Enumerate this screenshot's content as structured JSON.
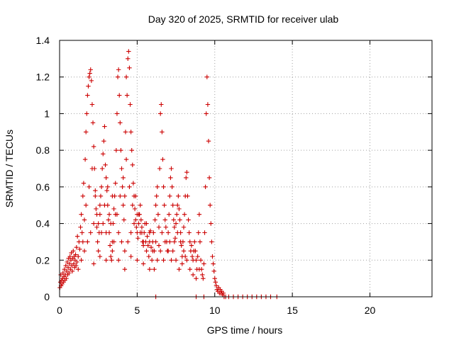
{
  "chart_data": {
    "type": "scatter",
    "title": "Day 320 of 2025, SRMTID for receiver ulab",
    "xlabel": "GPS time / hours",
    "ylabel": "SRMTID / TECUs",
    "xlim": [
      0,
      24
    ],
    "ylim": [
      0,
      1.4
    ],
    "x_ticks": [
      0,
      5,
      10,
      15,
      20
    ],
    "x_tick_labels": [
      "0",
      "5",
      "10",
      "15",
      "20"
    ],
    "y_ticks": [
      0,
      0.2,
      0.4,
      0.6,
      0.8,
      1,
      1.2,
      1.4
    ],
    "y_tick_labels": [
      "0",
      "0.2",
      "0.4",
      "0.6",
      "0.8",
      "1",
      "1.2",
      "1.4"
    ],
    "grid": true,
    "marker": "+",
    "series_color": "#cc0000",
    "series": [
      {
        "name": "SRMTID",
        "points": [
          [
            0.02,
            0.05
          ],
          [
            0.05,
            0.08
          ],
          [
            0.08,
            0.12
          ],
          [
            0.1,
            0.06
          ],
          [
            0.13,
            0.09
          ],
          [
            0.16,
            0.07
          ],
          [
            0.19,
            0.1
          ],
          [
            0.22,
            0.13
          ],
          [
            0.25,
            0.08
          ],
          [
            0.28,
            0.11
          ],
          [
            0.31,
            0.15
          ],
          [
            0.34,
            0.09
          ],
          [
            0.37,
            0.12
          ],
          [
            0.4,
            0.17
          ],
          [
            0.43,
            0.1
          ],
          [
            0.46,
            0.14
          ],
          [
            0.49,
            0.19
          ],
          [
            0.52,
            0.12
          ],
          [
            0.55,
            0.16
          ],
          [
            0.58,
            0.21
          ],
          [
            0.61,
            0.13
          ],
          [
            0.64,
            0.18
          ],
          [
            0.67,
            0.22
          ],
          [
            0.7,
            0.15
          ],
          [
            0.73,
            0.2
          ],
          [
            0.76,
            0.24
          ],
          [
            0.79,
            0.17
          ],
          [
            0.82,
            0.14
          ],
          [
            0.85,
            0.21
          ],
          [
            0.88,
            0.25
          ],
          [
            0.91,
            0.18
          ],
          [
            0.94,
            0.22
          ],
          [
            0.97,
            0.16
          ],
          [
            1.0,
            0.2
          ],
          [
            1.03,
            0.23
          ],
          [
            1.06,
            0.17
          ],
          [
            1.09,
            0.27
          ],
          [
            1.12,
            0.19
          ],
          [
            1.15,
            0.33
          ],
          [
            1.2,
            0.22
          ],
          [
            1.25,
            0.3
          ],
          [
            1.3,
            0.26
          ],
          [
            1.35,
            0.38
          ],
          [
            1.4,
            0.45
          ],
          [
            1.45,
            0.35
          ],
          [
            1.5,
            0.55
          ],
          [
            1.55,
            0.62
          ],
          [
            1.6,
            0.42
          ],
          [
            1.65,
            0.75
          ],
          [
            1.7,
            0.9
          ],
          [
            1.75,
            1.0
          ],
          [
            1.8,
            1.1
          ],
          [
            1.85,
            1.15
          ],
          [
            1.9,
            1.2
          ],
          [
            1.95,
            1.22
          ],
          [
            2.0,
            1.24
          ],
          [
            2.05,
            1.18
          ],
          [
            2.1,
            1.05
          ],
          [
            2.15,
            0.95
          ],
          [
            2.2,
            0.82
          ],
          [
            2.25,
            0.7
          ],
          [
            2.3,
            0.58
          ],
          [
            2.35,
            0.48
          ],
          [
            2.4,
            0.38
          ],
          [
            2.45,
            0.3
          ],
          [
            2.5,
            0.25
          ],
          [
            2.55,
            0.35
          ],
          [
            2.6,
            0.45
          ],
          [
            2.65,
            0.55
          ],
          [
            2.7,
            0.6
          ],
          [
            2.75,
            0.7
          ],
          [
            2.8,
            0.78
          ],
          [
            2.85,
            0.85
          ],
          [
            2.9,
            0.93
          ],
          [
            2.95,
            0.72
          ],
          [
            3.0,
            0.65
          ],
          [
            3.05,
            0.58
          ],
          [
            3.1,
            0.5
          ],
          [
            3.15,
            0.42
          ],
          [
            3.2,
            0.35
          ],
          [
            3.25,
            0.28
          ],
          [
            3.3,
            0.22
          ],
          [
            3.35,
            0.2
          ],
          [
            3.4,
            0.3
          ],
          [
            3.45,
            0.4
          ],
          [
            3.5,
            0.48
          ],
          [
            3.55,
            0.55
          ],
          [
            3.6,
            0.62
          ],
          [
            3.65,
            0.8
          ],
          [
            3.7,
            1.0
          ],
          [
            3.75,
            1.2
          ],
          [
            3.8,
            1.24
          ],
          [
            3.85,
            1.1
          ],
          [
            3.9,
            0.95
          ],
          [
            3.95,
            0.8
          ],
          [
            4.0,
            0.7
          ],
          [
            4.05,
            0.6
          ],
          [
            4.1,
            0.5
          ],
          [
            4.15,
            0.42
          ],
          [
            4.2,
            0.55
          ],
          [
            4.25,
            0.9
          ],
          [
            4.3,
            1.2
          ],
          [
            4.35,
            1.1
          ],
          [
            4.4,
            1.3
          ],
          [
            4.45,
            1.34
          ],
          [
            4.5,
            1.25
          ],
          [
            4.55,
            1.05
          ],
          [
            4.6,
            0.9
          ],
          [
            4.65,
            0.8
          ],
          [
            4.7,
            0.72
          ],
          [
            4.75,
            0.62
          ],
          [
            4.8,
            0.55
          ],
          [
            4.85,
            0.48
          ],
          [
            4.9,
            0.42
          ],
          [
            4.95,
            0.38
          ],
          [
            5.0,
            0.35
          ],
          [
            5.05,
            0.32
          ],
          [
            5.1,
            0.4
          ],
          [
            5.15,
            0.45
          ],
          [
            5.2,
            0.5
          ],
          [
            5.25,
            0.42
          ],
          [
            5.3,
            0.38
          ],
          [
            5.35,
            0.3
          ],
          [
            5.4,
            0.28
          ],
          [
            5.45,
            0.35
          ],
          [
            5.5,
            0.4
          ],
          [
            5.55,
            0.3
          ],
          [
            5.6,
            0.25
          ],
          [
            5.65,
            0.33
          ],
          [
            5.7,
            0.28
          ],
          [
            5.75,
            0.22
          ],
          [
            5.8,
            0.3
          ],
          [
            5.85,
            0.36
          ],
          [
            5.9,
            0.27
          ],
          [
            5.95,
            0.2
          ],
          [
            6.0,
            0.3
          ],
          [
            6.05,
            0.35
          ],
          [
            6.1,
            0.25
          ],
          [
            6.15,
            0.42
          ],
          [
            6.2,
            0.5
          ],
          [
            6.25,
            0.55
          ],
          [
            6.3,
            0.6
          ],
          [
            6.35,
            0.45
          ],
          [
            6.4,
            0.38
          ],
          [
            6.45,
            0.7
          ],
          [
            6.5,
            1.0
          ],
          [
            6.55,
            1.05
          ],
          [
            6.6,
            0.9
          ],
          [
            6.65,
            0.75
          ],
          [
            6.7,
            0.6
          ],
          [
            6.75,
            0.5
          ],
          [
            6.8,
            0.42
          ],
          [
            6.85,
            0.38
          ],
          [
            6.9,
            0.3
          ],
          [
            6.95,
            0.25
          ],
          [
            7.0,
            0.35
          ],
          [
            7.05,
            0.45
          ],
          [
            7.1,
            0.55
          ],
          [
            7.15,
            0.65
          ],
          [
            7.2,
            0.7
          ],
          [
            7.25,
            0.6
          ],
          [
            7.3,
            0.5
          ],
          [
            7.35,
            0.42
          ],
          [
            7.4,
            0.38
          ],
          [
            7.45,
            0.32
          ],
          [
            7.5,
            0.4
          ],
          [
            7.55,
            0.45
          ],
          [
            7.6,
            0.5
          ],
          [
            7.65,
            0.55
          ],
          [
            7.7,
            0.48
          ],
          [
            7.75,
            0.42
          ],
          [
            7.8,
            0.35
          ],
          [
            7.85,
            0.28
          ],
          [
            7.9,
            0.22
          ],
          [
            7.95,
            0.3
          ],
          [
            8.0,
            0.38
          ],
          [
            8.05,
            0.45
          ],
          [
            8.1,
            0.55
          ],
          [
            8.15,
            0.65
          ],
          [
            8.2,
            0.68
          ],
          [
            8.25,
            0.55
          ],
          [
            8.3,
            0.42
          ],
          [
            8.35,
            0.35
          ],
          [
            8.4,
            0.3
          ],
          [
            8.45,
            0.25
          ],
          [
            8.5,
            0.28
          ],
          [
            8.55,
            0.22
          ],
          [
            8.6,
            0.2
          ],
          [
            8.65,
            0.25
          ],
          [
            8.7,
            0.3
          ],
          [
            8.75,
            0.25
          ],
          [
            8.8,
            0.2
          ],
          [
            8.85,
            0.15
          ],
          [
            8.9,
            0.22
          ],
          [
            8.95,
            0.35
          ],
          [
            9.0,
            0.45
          ],
          [
            9.05,
            0.3
          ],
          [
            9.1,
            0.2
          ],
          [
            9.15,
            0.15
          ],
          [
            9.2,
            0.12
          ],
          [
            9.25,
            0.1
          ],
          [
            9.3,
            0.18
          ],
          [
            9.35,
            0.35
          ],
          [
            9.4,
            0.6
          ],
          [
            9.45,
            1.0
          ],
          [
            9.5,
            1.2
          ],
          [
            9.55,
            1.05
          ],
          [
            9.6,
            0.85
          ],
          [
            9.65,
            0.65
          ],
          [
            9.7,
            0.5
          ],
          [
            9.75,
            0.4
          ],
          [
            9.8,
            0.3
          ],
          [
            9.85,
            0.22
          ],
          [
            9.9,
            0.18
          ],
          [
            9.95,
            0.14
          ],
          [
            10.0,
            0.1
          ],
          [
            10.05,
            0.08
          ],
          [
            10.1,
            0.06
          ],
          [
            10.15,
            0.04
          ],
          [
            10.2,
            0.03
          ],
          [
            10.25,
            0.05
          ],
          [
            10.3,
            0.02
          ],
          [
            10.35,
            0.04
          ],
          [
            10.4,
            0.02
          ],
          [
            10.45,
            0.03
          ],
          [
            10.5,
            0.01
          ],
          [
            10.55,
            0.02
          ],
          [
            10.6,
            0.0
          ],
          [
            1.2,
            0.15
          ],
          [
            1.4,
            0.2
          ],
          [
            1.6,
            0.25
          ],
          [
            1.8,
            0.3
          ],
          [
            2.0,
            0.35
          ],
          [
            2.2,
            0.4
          ],
          [
            2.4,
            0.45
          ],
          [
            2.6,
            0.5
          ],
          [
            2.8,
            0.4
          ],
          [
            3.0,
            0.35
          ],
          [
            3.2,
            0.45
          ],
          [
            3.4,
            0.55
          ],
          [
            3.6,
            0.45
          ],
          [
            3.8,
            0.35
          ],
          [
            4.0,
            0.3
          ],
          [
            4.2,
            0.25
          ],
          [
            4.4,
            0.3
          ],
          [
            4.6,
            0.35
          ],
          [
            4.8,
            0.4
          ],
          [
            5.0,
            0.45
          ],
          [
            5.2,
            0.35
          ],
          [
            5.4,
            0.3
          ],
          [
            5.6,
            0.4
          ],
          [
            5.8,
            0.35
          ],
          [
            6.0,
            0.25
          ],
          [
            6.2,
            0.3
          ],
          [
            6.4,
            0.28
          ],
          [
            6.6,
            0.35
          ],
          [
            6.8,
            0.3
          ],
          [
            7.0,
            0.25
          ],
          [
            7.2,
            0.2
          ],
          [
            7.4,
            0.3
          ],
          [
            7.6,
            0.35
          ],
          [
            7.8,
            0.3
          ],
          [
            8.0,
            0.25
          ],
          [
            8.2,
            0.2
          ],
          [
            8.4,
            0.15
          ],
          [
            8.6,
            0.12
          ],
          [
            8.8,
            0.1
          ],
          [
            9.0,
            0.15
          ],
          [
            1.5,
            0.3
          ],
          [
            1.7,
            0.5
          ],
          [
            1.9,
            0.6
          ],
          [
            2.1,
            0.7
          ],
          [
            2.3,
            0.55
          ],
          [
            2.5,
            0.4
          ],
          [
            2.7,
            0.35
          ],
          [
            2.9,
            0.5
          ],
          [
            3.1,
            0.6
          ],
          [
            3.3,
            0.4
          ],
          [
            3.5,
            0.3
          ],
          [
            3.7,
            0.45
          ],
          [
            3.9,
            0.55
          ],
          [
            4.1,
            0.65
          ],
          [
            4.3,
            0.75
          ],
          [
            4.5,
            0.6
          ],
          [
            4.7,
            0.5
          ],
          [
            4.9,
            0.55
          ],
          [
            5.1,
            0.45
          ],
          [
            5.3,
            0.35
          ],
          [
            6.1,
            0.15
          ],
          [
            6.3,
            0.2
          ],
          [
            6.5,
            0.25
          ],
          [
            6.7,
            0.2
          ],
          [
            7.1,
            0.3
          ],
          [
            7.3,
            0.25
          ],
          [
            7.5,
            0.2
          ],
          [
            7.7,
            0.15
          ],
          [
            7.9,
            0.18
          ],
          [
            8.1,
            0.22
          ],
          [
            2.2,
            0.18
          ],
          [
            2.6,
            0.22
          ],
          [
            3.0,
            0.2
          ],
          [
            3.4,
            0.25
          ],
          [
            3.8,
            0.2
          ],
          [
            4.2,
            0.15
          ],
          [
            4.6,
            0.22
          ],
          [
            5.0,
            0.2
          ],
          [
            5.4,
            0.18
          ],
          [
            5.8,
            0.15
          ],
          [
            6.2,
            0.0
          ],
          [
            10.9,
            0.0
          ],
          [
            11.2,
            0.0
          ],
          [
            11.5,
            0.0
          ],
          [
            11.8,
            0.0
          ],
          [
            12.1,
            0.0
          ],
          [
            12.4,
            0.0
          ],
          [
            12.7,
            0.0
          ],
          [
            13.0,
            0.0
          ],
          [
            13.3,
            0.0
          ],
          [
            13.6,
            0.0
          ],
          [
            14.0,
            0.0
          ],
          [
            10.7,
            0.0
          ],
          [
            8.8,
            0.0
          ],
          [
            9.3,
            0.0
          ]
        ]
      }
    ]
  }
}
